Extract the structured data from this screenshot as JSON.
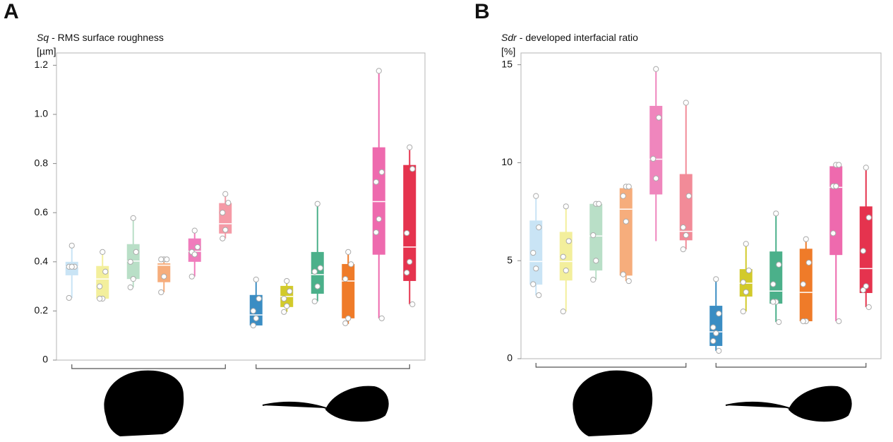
{
  "chart_data": [
    {
      "type": "box",
      "panel": "A",
      "title_symbol": "Sq",
      "title": "- RMS surface roughness",
      "ylabel": "[µm]",
      "ylim": [
        0,
        1.25
      ],
      "yticks": [
        0,
        0.2,
        0.4,
        0.6,
        0.8,
        {
          "value": 1,
          "label": "1.0"
        },
        1.2
      ],
      "series": [
        {
          "color": "#c9e4f5",
          "min": 0.253,
          "q1": 0.345,
          "median": 0.38,
          "q3": 0.4,
          "max": 0.466,
          "points": [
            0.466,
            0.38,
            0.38,
            0.38,
            0.253
          ]
        },
        {
          "color": "#f3ef9c",
          "min": 0.25,
          "q1": 0.25,
          "median": 0.33,
          "q3": 0.383,
          "max": 0.44,
          "points": [
            0.44,
            0.36,
            0.3,
            0.25,
            0.25
          ]
        },
        {
          "color": "#b9dfc7",
          "min": 0.296,
          "q1": 0.33,
          "median": 0.403,
          "q3": 0.472,
          "max": 0.578,
          "points": [
            0.578,
            0.44,
            0.4,
            0.33,
            0.296
          ]
        },
        {
          "color": "#f6ad7c",
          "min": 0.276,
          "q1": 0.317,
          "median": 0.386,
          "q3": 0.394,
          "max": 0.415,
          "points": [
            0.41,
            0.41,
            0.41,
            0.34,
            0.276
          ]
        },
        {
          "color": "#f07cbc",
          "min": 0.34,
          "q1": 0.4,
          "median": 0.443,
          "q3": 0.495,
          "max": 0.527,
          "points": [
            0.527,
            0.46,
            0.44,
            0.43,
            0.34
          ]
        },
        {
          "color": "#f59aa6",
          "min": 0.495,
          "q1": 0.515,
          "median": 0.555,
          "q3": 0.639,
          "max": 0.676,
          "points": [
            0.676,
            0.64,
            0.6,
            0.53,
            0.495
          ]
        },
        {
          "color": "#3b8dc3",
          "min": 0.141,
          "q1": 0.141,
          "median": 0.184,
          "q3": 0.265,
          "max": 0.328,
          "points": [
            0.328,
            0.25,
            0.2,
            0.17,
            0.141
          ]
        },
        {
          "color": "#d2ca2b",
          "min": 0.196,
          "q1": 0.216,
          "median": 0.259,
          "q3": 0.302,
          "max": 0.322,
          "points": [
            0.322,
            0.28,
            0.25,
            0.22,
            0.196
          ]
        },
        {
          "color": "#4bb08a",
          "min": 0.239,
          "q1": 0.27,
          "median": 0.348,
          "q3": 0.44,
          "max": 0.636,
          "points": [
            0.636,
            0.375,
            0.36,
            0.3,
            0.239
          ]
        },
        {
          "color": "#ef7b29",
          "min": 0.147,
          "q1": 0.17,
          "median": 0.322,
          "q3": 0.391,
          "max": 0.44,
          "points": [
            0.44,
            0.39,
            0.33,
            0.17,
            0.15
          ]
        },
        {
          "color": "#ee6aae",
          "min": 0.17,
          "q1": 0.429,
          "median": 0.645,
          "q3": 0.866,
          "max": 1.177,
          "points": [
            1.177,
            0.765,
            0.725,
            0.574,
            0.52,
            0.17
          ]
        },
        {
          "color": "#e5334e",
          "min": 0.227,
          "q1": 0.322,
          "median": 0.46,
          "q3": 0.794,
          "max": 0.866,
          "points": [
            0.866,
            0.778,
            0.517,
            0.4,
            0.356,
            0.227
          ]
        }
      ]
    },
    {
      "type": "box",
      "panel": "B",
      "title_symbol": "Sdr",
      "title": "- developed interfacial ratio",
      "ylabel": "[%]",
      "ylim": [
        0,
        15.6
      ],
      "yticks": [
        0,
        5,
        10,
        15
      ],
      "series": [
        {
          "color": "#c9e4f5",
          "min": 3.24,
          "q1": 3.78,
          "median": 4.96,
          "q3": 7.05,
          "max": 8.3,
          "points": [
            8.3,
            6.7,
            5.4,
            4.6,
            3.8,
            3.24
          ]
        },
        {
          "color": "#f3ef9c",
          "min": 2.41,
          "q1": 3.99,
          "median": 4.96,
          "q3": 6.47,
          "max": 7.77,
          "points": [
            7.77,
            6.0,
            5.2,
            4.5,
            2.41
          ]
        },
        {
          "color": "#b9dfc7",
          "min": 4.03,
          "q1": 4.5,
          "median": 6.26,
          "q3": 7.9,
          "max": 7.9,
          "points": [
            7.9,
            7.9,
            6.3,
            5.0,
            4.03
          ]
        },
        {
          "color": "#f6ad7c",
          "min": 3.96,
          "q1": 4.24,
          "median": 7.63,
          "q3": 8.7,
          "max": 8.78,
          "points": [
            8.78,
            8.78,
            8.3,
            7.0,
            4.3,
            3.96
          ]
        },
        {
          "color": "#ef86bd",
          "min": 6.0,
          "q1": 8.38,
          "median": 10.18,
          "q3": 12.9,
          "max": 14.78,
          "points": [
            14.78,
            12.3,
            10.2,
            9.2
          ]
        },
        {
          "color": "#f28b98",
          "min": 5.58,
          "q1": 6.04,
          "median": 6.5,
          "q3": 9.42,
          "max": 13.06,
          "points": [
            13.06,
            8.3,
            6.7,
            6.3,
            5.58
          ]
        },
        {
          "color": "#3b8dc3",
          "min": 0.4,
          "q1": 0.65,
          "median": 1.37,
          "q3": 2.7,
          "max": 4.06,
          "points": [
            4.06,
            2.3,
            1.6,
            1.3,
            0.9,
            0.4
          ]
        },
        {
          "color": "#d2ca2b",
          "min": 2.41,
          "q1": 3.17,
          "median": 3.85,
          "q3": 4.57,
          "max": 5.86,
          "points": [
            5.86,
            4.5,
            3.9,
            3.4,
            2.41
          ]
        },
        {
          "color": "#4bb08a",
          "min": 1.87,
          "q1": 2.81,
          "median": 3.45,
          "q3": 5.47,
          "max": 7.41,
          "points": [
            7.41,
            4.8,
            3.8,
            2.9,
            2.9,
            1.87
          ]
        },
        {
          "color": "#ef7b29",
          "min": 1.91,
          "q1": 1.91,
          "median": 3.38,
          "q3": 5.61,
          "max": 6.12,
          "points": [
            6.1,
            4.9,
            3.8,
            1.91,
            1.91
          ]
        },
        {
          "color": "#ee6aae",
          "min": 1.91,
          "q1": 5.29,
          "median": 8.74,
          "q3": 9.82,
          "max": 9.89,
          "points": [
            9.89,
            9.89,
            8.8,
            8.8,
            6.4,
            1.91
          ]
        },
        {
          "color": "#e5334e",
          "min": 2.63,
          "q1": 3.35,
          "median": 4.6,
          "q3": 7.77,
          "max": 9.75,
          "points": [
            9.75,
            7.2,
            5.5,
            3.7,
            3.5,
            2.63
          ]
        }
      ]
    }
  ]
}
